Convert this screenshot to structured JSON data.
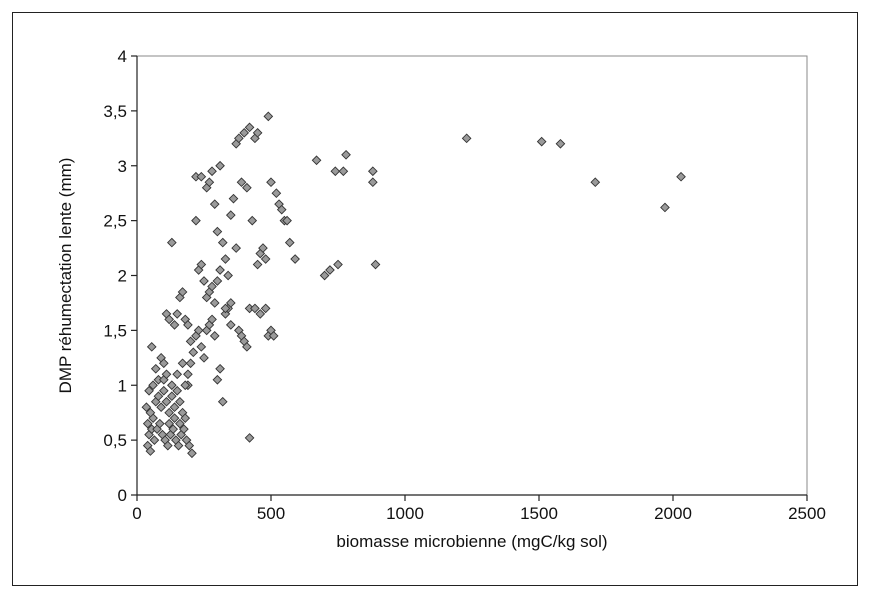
{
  "chart_data": {
    "type": "scatter",
    "title": "",
    "xlabel": "biomasse microbienne (mgC/kg sol)",
    "ylabel": "DMP réhumectation lente (mm)",
    "xlim": [
      0,
      2500
    ],
    "ylim": [
      0,
      4
    ],
    "x_ticks": [
      "0",
      "500",
      "1000",
      "1500",
      "2000",
      "2500"
    ],
    "y_ticks": [
      "0",
      "0,5",
      "1",
      "1,5",
      "2",
      "2,5",
      "3",
      "3,5",
      "4"
    ],
    "grid": false,
    "legend": "none",
    "marker": "diamond",
    "marker_color": "#9a9a9a",
    "marker_edge_color": "#333333",
    "points": [
      [
        40,
        0.45
      ],
      [
        50,
        0.4
      ],
      [
        45,
        0.55
      ],
      [
        55,
        0.6
      ],
      [
        60,
        0.7
      ],
      [
        50,
        0.75
      ],
      [
        40,
        0.65
      ],
      [
        35,
        0.8
      ],
      [
        45,
        0.95
      ],
      [
        60,
        1.0
      ],
      [
        55,
        1.35
      ],
      [
        70,
        1.15
      ],
      [
        80,
        1.05
      ],
      [
        90,
        1.25
      ],
      [
        100,
        1.2
      ],
      [
        110,
        1.65
      ],
      [
        120,
        1.6
      ],
      [
        130,
        2.3
      ],
      [
        140,
        1.55
      ],
      [
        150,
        1.65
      ],
      [
        160,
        1.8
      ],
      [
        170,
        1.85
      ],
      [
        180,
        1.6
      ],
      [
        190,
        1.55
      ],
      [
        200,
        1.4
      ],
      [
        65,
        0.5
      ],
      [
        75,
        0.6
      ],
      [
        85,
        0.65
      ],
      [
        95,
        0.55
      ],
      [
        105,
        0.5
      ],
      [
        115,
        0.45
      ],
      [
        125,
        0.55
      ],
      [
        135,
        0.6
      ],
      [
        145,
        0.5
      ],
      [
        155,
        0.45
      ],
      [
        165,
        0.55
      ],
      [
        175,
        0.6
      ],
      [
        185,
        0.5
      ],
      [
        195,
        0.45
      ],
      [
        205,
        0.38
      ],
      [
        70,
        0.85
      ],
      [
        80,
        0.9
      ],
      [
        90,
        0.8
      ],
      [
        100,
        0.95
      ],
      [
        110,
        0.85
      ],
      [
        120,
        0.75
      ],
      [
        130,
        0.9
      ],
      [
        140,
        0.8
      ],
      [
        150,
        0.95
      ],
      [
        160,
        0.85
      ],
      [
        170,
        0.75
      ],
      [
        180,
        0.7
      ],
      [
        190,
        1.0
      ],
      [
        100,
        1.05
      ],
      [
        110,
        1.1
      ],
      [
        120,
        0.65
      ],
      [
        130,
        1.0
      ],
      [
        140,
        0.7
      ],
      [
        150,
        1.1
      ],
      [
        160,
        0.65
      ],
      [
        170,
        1.2
      ],
      [
        180,
        1.0
      ],
      [
        190,
        1.1
      ],
      [
        200,
        1.2
      ],
      [
        210,
        1.3
      ],
      [
        220,
        1.45
      ],
      [
        230,
        1.5
      ],
      [
        240,
        1.35
      ],
      [
        250,
        1.25
      ],
      [
        260,
        1.5
      ],
      [
        270,
        1.55
      ],
      [
        280,
        1.6
      ],
      [
        290,
        1.45
      ],
      [
        300,
        1.05
      ],
      [
        310,
        1.15
      ],
      [
        320,
        0.85
      ],
      [
        330,
        1.65
      ],
      [
        340,
        1.7
      ],
      [
        350,
        1.55
      ],
      [
        220,
        2.9
      ],
      [
        240,
        2.9
      ],
      [
        260,
        2.8
      ],
      [
        270,
        2.85
      ],
      [
        280,
        2.95
      ],
      [
        290,
        2.65
      ],
      [
        300,
        2.4
      ],
      [
        310,
        3.0
      ],
      [
        320,
        2.3
      ],
      [
        330,
        2.15
      ],
      [
        340,
        2.0
      ],
      [
        350,
        2.55
      ],
      [
        360,
        2.7
      ],
      [
        370,
        3.2
      ],
      [
        380,
        3.25
      ],
      [
        390,
        2.85
      ],
      [
        400,
        3.3
      ],
      [
        410,
        2.8
      ],
      [
        420,
        3.35
      ],
      [
        430,
        2.5
      ],
      [
        440,
        3.25
      ],
      [
        450,
        3.3
      ],
      [
        460,
        2.2
      ],
      [
        470,
        2.25
      ],
      [
        480,
        2.15
      ],
      [
        490,
        3.45
      ],
      [
        500,
        2.85
      ],
      [
        220,
        2.5
      ],
      [
        230,
        2.05
      ],
      [
        240,
        2.1
      ],
      [
        250,
        1.95
      ],
      [
        260,
        1.8
      ],
      [
        270,
        1.85
      ],
      [
        280,
        1.9
      ],
      [
        290,
        1.75
      ],
      [
        300,
        1.95
      ],
      [
        310,
        2.05
      ],
      [
        330,
        1.7
      ],
      [
        350,
        1.75
      ],
      [
        370,
        2.25
      ],
      [
        380,
        1.5
      ],
      [
        390,
        1.45
      ],
      [
        400,
        1.4
      ],
      [
        410,
        1.35
      ],
      [
        420,
        1.7
      ],
      [
        440,
        1.7
      ],
      [
        450,
        2.1
      ],
      [
        460,
        1.65
      ],
      [
        480,
        1.7
      ],
      [
        490,
        1.45
      ],
      [
        500,
        1.5
      ],
      [
        510,
        1.45
      ],
      [
        520,
        2.75
      ],
      [
        530,
        2.65
      ],
      [
        540,
        2.6
      ],
      [
        550,
        2.5
      ],
      [
        560,
        2.5
      ],
      [
        570,
        2.3
      ],
      [
        590,
        2.15
      ],
      [
        420,
        0.52
      ],
      [
        670,
        3.05
      ],
      [
        700,
        2.0
      ],
      [
        720,
        2.05
      ],
      [
        740,
        2.95
      ],
      [
        750,
        2.1
      ],
      [
        770,
        2.95
      ],
      [
        780,
        3.1
      ],
      [
        880,
        2.85
      ],
      [
        880,
        2.95
      ],
      [
        890,
        2.1
      ],
      [
        1230,
        3.25
      ],
      [
        1510,
        3.22
      ],
      [
        1580,
        3.2
      ],
      [
        1710,
        2.85
      ],
      [
        1970,
        2.62
      ],
      [
        2030,
        2.9
      ]
    ]
  }
}
